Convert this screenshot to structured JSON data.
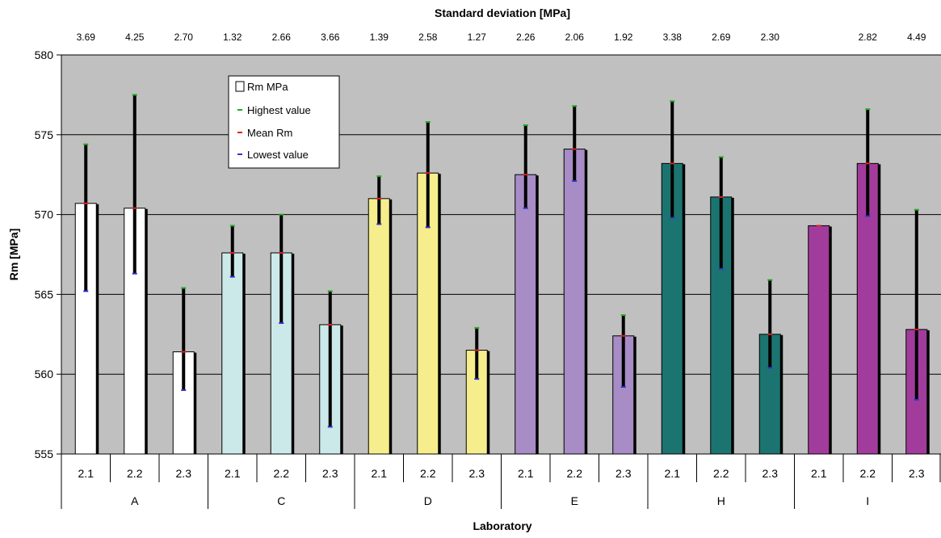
{
  "chart_data": {
    "type": "bar",
    "title": "Standard deviation [MPa]",
    "xlabel": "Laboratory",
    "ylabel": "Rm  [MPa]",
    "ylim": [
      555,
      580
    ],
    "yticks": [
      555,
      560,
      565,
      570,
      575,
      580
    ],
    "grid": true,
    "legend_position": "top-left",
    "legend": [
      "Rm MPa",
      "Highest value",
      "Mean Rm",
      "Lowest value"
    ],
    "legend_colors": {
      "highest": "#22aa22",
      "mean": "#dd2222",
      "lowest": "#3333cc"
    },
    "groups": [
      {
        "name": "A",
        "color": "#ffffff"
      },
      {
        "name": "C",
        "color": "#cce9ea"
      },
      {
        "name": "D",
        "color": "#f6ee8c"
      },
      {
        "name": "E",
        "color": "#a78cc6"
      },
      {
        "name": "H",
        "color": "#1c7470"
      },
      {
        "name": "I",
        "color": "#a23c9c"
      }
    ],
    "bars": [
      {
        "group": "A",
        "label": "2.1",
        "mean": 570.7,
        "high": 574.4,
        "low": 565.2,
        "sd": "3.69"
      },
      {
        "group": "A",
        "label": "2.2",
        "mean": 570.4,
        "high": 577.5,
        "low": 566.3,
        "sd": "4.25"
      },
      {
        "group": "A",
        "label": "2.3",
        "mean": 561.4,
        "high": 565.4,
        "low": 559.0,
        "sd": "2.70"
      },
      {
        "group": "C",
        "label": "2.1",
        "mean": 567.6,
        "high": 569.3,
        "low": 566.1,
        "sd": "1.32"
      },
      {
        "group": "C",
        "label": "2.2",
        "mean": 567.6,
        "high": 570.0,
        "low": 563.2,
        "sd": "2.66"
      },
      {
        "group": "C",
        "label": "2.3",
        "mean": 563.1,
        "high": 565.2,
        "low": 556.7,
        "sd": "3.66"
      },
      {
        "group": "D",
        "label": "2.1",
        "mean": 571.0,
        "high": 572.4,
        "low": 569.4,
        "sd": "1.39"
      },
      {
        "group": "D",
        "label": "2.2",
        "mean": 572.6,
        "high": 575.8,
        "low": 569.2,
        "sd": "2.58"
      },
      {
        "group": "D",
        "label": "2.3",
        "mean": 561.5,
        "high": 562.9,
        "low": 559.7,
        "sd": "1.27"
      },
      {
        "group": "E",
        "label": "2.1",
        "mean": 572.5,
        "high": 575.6,
        "low": 570.4,
        "sd": "2.26"
      },
      {
        "group": "E",
        "label": "2.2",
        "mean": 574.1,
        "high": 576.8,
        "low": 572.1,
        "sd": "2.06"
      },
      {
        "group": "E",
        "label": "2.3",
        "mean": 562.4,
        "high": 563.7,
        "low": 559.2,
        "sd": "1.92"
      },
      {
        "group": "H",
        "label": "2.1",
        "mean": 573.2,
        "high": 577.1,
        "low": 569.8,
        "sd": "3.38"
      },
      {
        "group": "H",
        "label": "2.2",
        "mean": 571.1,
        "high": 573.6,
        "low": 566.6,
        "sd": "2.69"
      },
      {
        "group": "H",
        "label": "2.3",
        "mean": 562.5,
        "high": 565.9,
        "low": 560.4,
        "sd": "2.30"
      },
      {
        "group": "I",
        "label": "2.1",
        "mean": 569.3,
        "high": null,
        "low": null,
        "sd": ""
      },
      {
        "group": "I",
        "label": "2.2",
        "mean": 573.2,
        "high": 576.6,
        "low": 569.9,
        "sd": "2.82"
      },
      {
        "group": "I",
        "label": "2.3",
        "mean": 562.8,
        "high": 570.3,
        "low": 558.4,
        "sd": "4.49"
      }
    ]
  }
}
